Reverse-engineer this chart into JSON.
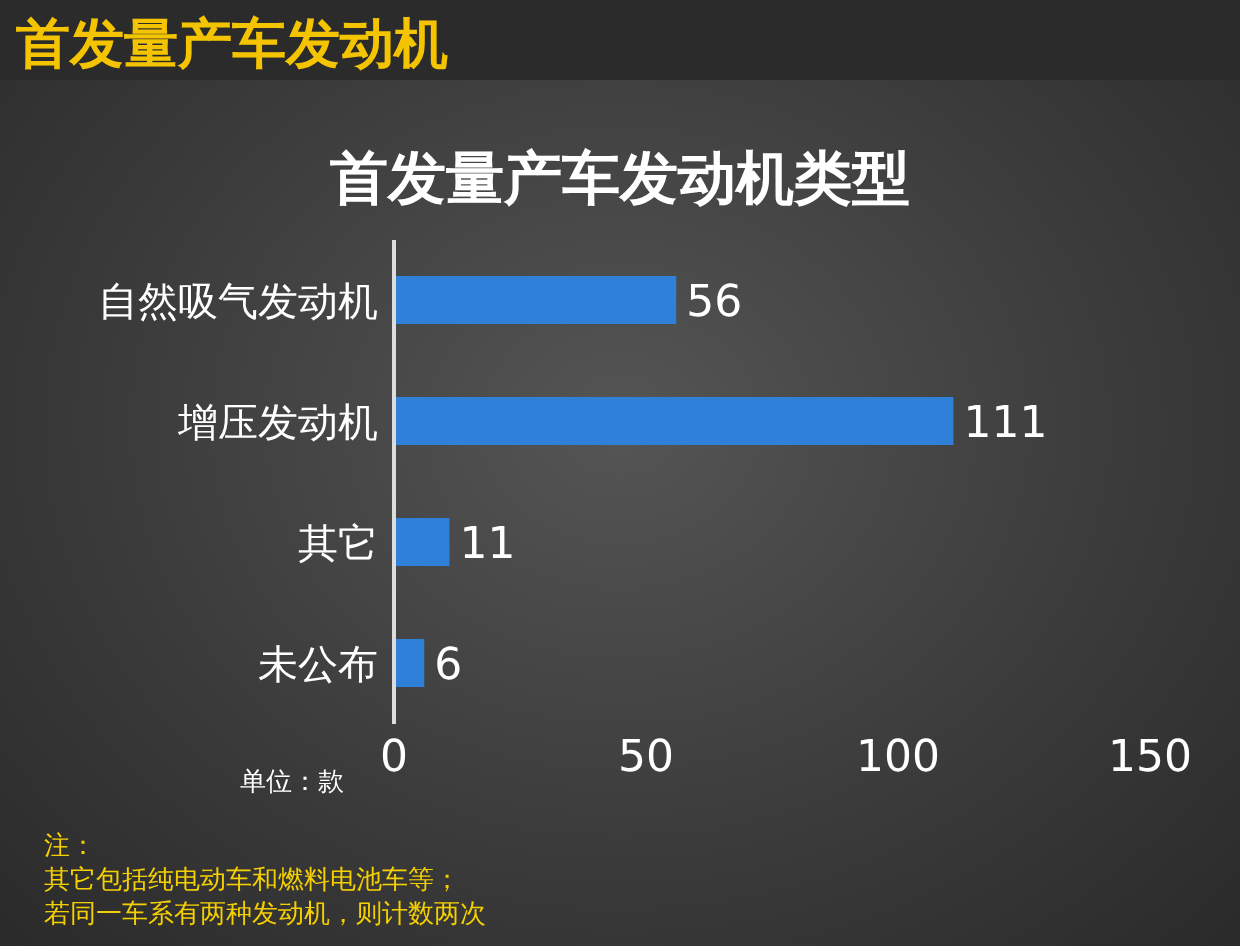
{
  "chart_data": {
    "type": "bar",
    "orientation": "horizontal",
    "title": "首发量产车发动机",
    "subtitle": "首发量产车发动机类型",
    "xlabel": "单位：款",
    "categories": [
      "自然吸气发动机",
      "增压发动机",
      "其它",
      "未公布"
    ],
    "values": [
      56,
      111,
      11,
      6
    ],
    "color": "#2f80d8",
    "data_labels": true,
    "xlim": [
      0,
      150
    ],
    "xticks": [
      0,
      50,
      100,
      150
    ],
    "grid": false,
    "annotations": [
      "注：",
      "其它包括纯电动车和燃料电池车等；",
      "若同一车系有两种发动机，则计数两次"
    ]
  }
}
